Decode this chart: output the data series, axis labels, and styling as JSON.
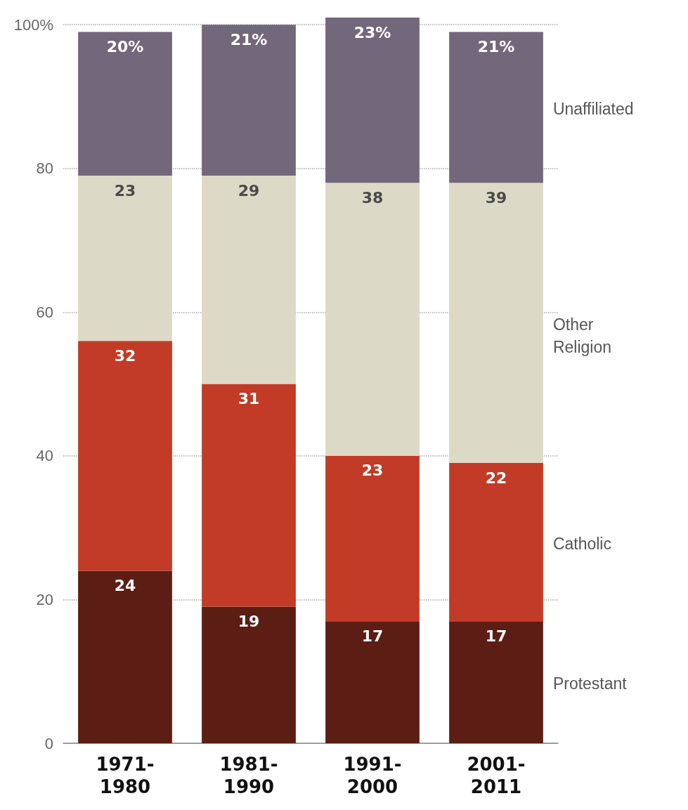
{
  "chart_data": {
    "type": "bar",
    "stacked": true,
    "categories": [
      "1971-1980",
      "1981-1990",
      "1991-2000",
      "2001-2011"
    ],
    "series": [
      {
        "name": "Protestant",
        "color": "#5c1d14",
        "values": [
          24,
          19,
          17,
          17
        ],
        "value_labels": [
          "24",
          "19",
          "17",
          "17"
        ]
      },
      {
        "name": "Catholic",
        "color": "#c13b27",
        "values": [
          32,
          31,
          23,
          22
        ],
        "value_labels": [
          "32",
          "31",
          "23",
          "22"
        ]
      },
      {
        "name": "Other Religion",
        "color": "#dcd9c6",
        "values": [
          23,
          29,
          38,
          39
        ],
        "value_labels": [
          "23",
          "29",
          "38",
          "39"
        ]
      },
      {
        "name": "Unaffiliated",
        "color": "#73677b",
        "values": [
          20,
          21,
          23,
          21
        ],
        "value_labels": [
          "20%",
          "21%",
          "23%",
          "21%"
        ]
      }
    ],
    "ylim": [
      0,
      101
    ],
    "yticks": [
      0,
      20,
      40,
      60,
      80,
      {
        "value": 100,
        "label": "100%"
      }
    ],
    "grid": "y",
    "legend": false
  }
}
